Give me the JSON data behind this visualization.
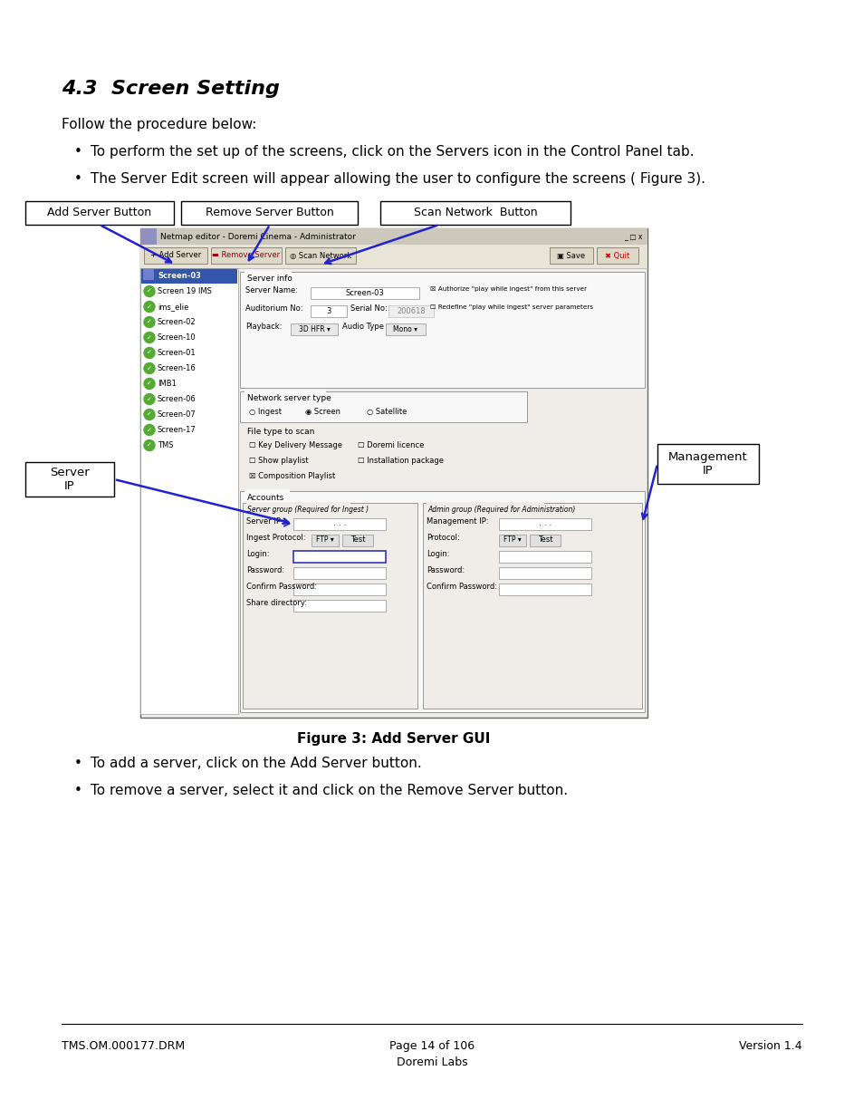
{
  "title": "4.3  Screen Setting",
  "body_text_1": "Follow the procedure below:",
  "bullet1": "To perform the set up of the screens, click on the Servers icon in the Control Panel tab.",
  "bullet2": "The Server Edit screen will appear allowing the user to configure the screens ( Figure 3).",
  "figure_caption": "Figure 3: Add Server GUI",
  "bullet3": "To add a server, click on the Add Server button.",
  "bullet4": "To remove a server, select it and click on the Remove Server button.",
  "footer_left": "TMS.OM.000177.DRM",
  "footer_center1": "Page 14 of 106",
  "footer_center2": "Doremi Labs",
  "footer_right": "Version 1.4",
  "label_add": "Add Server Button",
  "label_remove": "Remove Server Button",
  "label_scan": "Scan Network  Button",
  "label_server_ip": "Server\nIP",
  "label_mgmt_ip": "Management\nIP",
  "bg_color": "#ffffff",
  "text_color": "#000000",
  "blue_color": "#2222cc",
  "box_border_color": "#000000"
}
